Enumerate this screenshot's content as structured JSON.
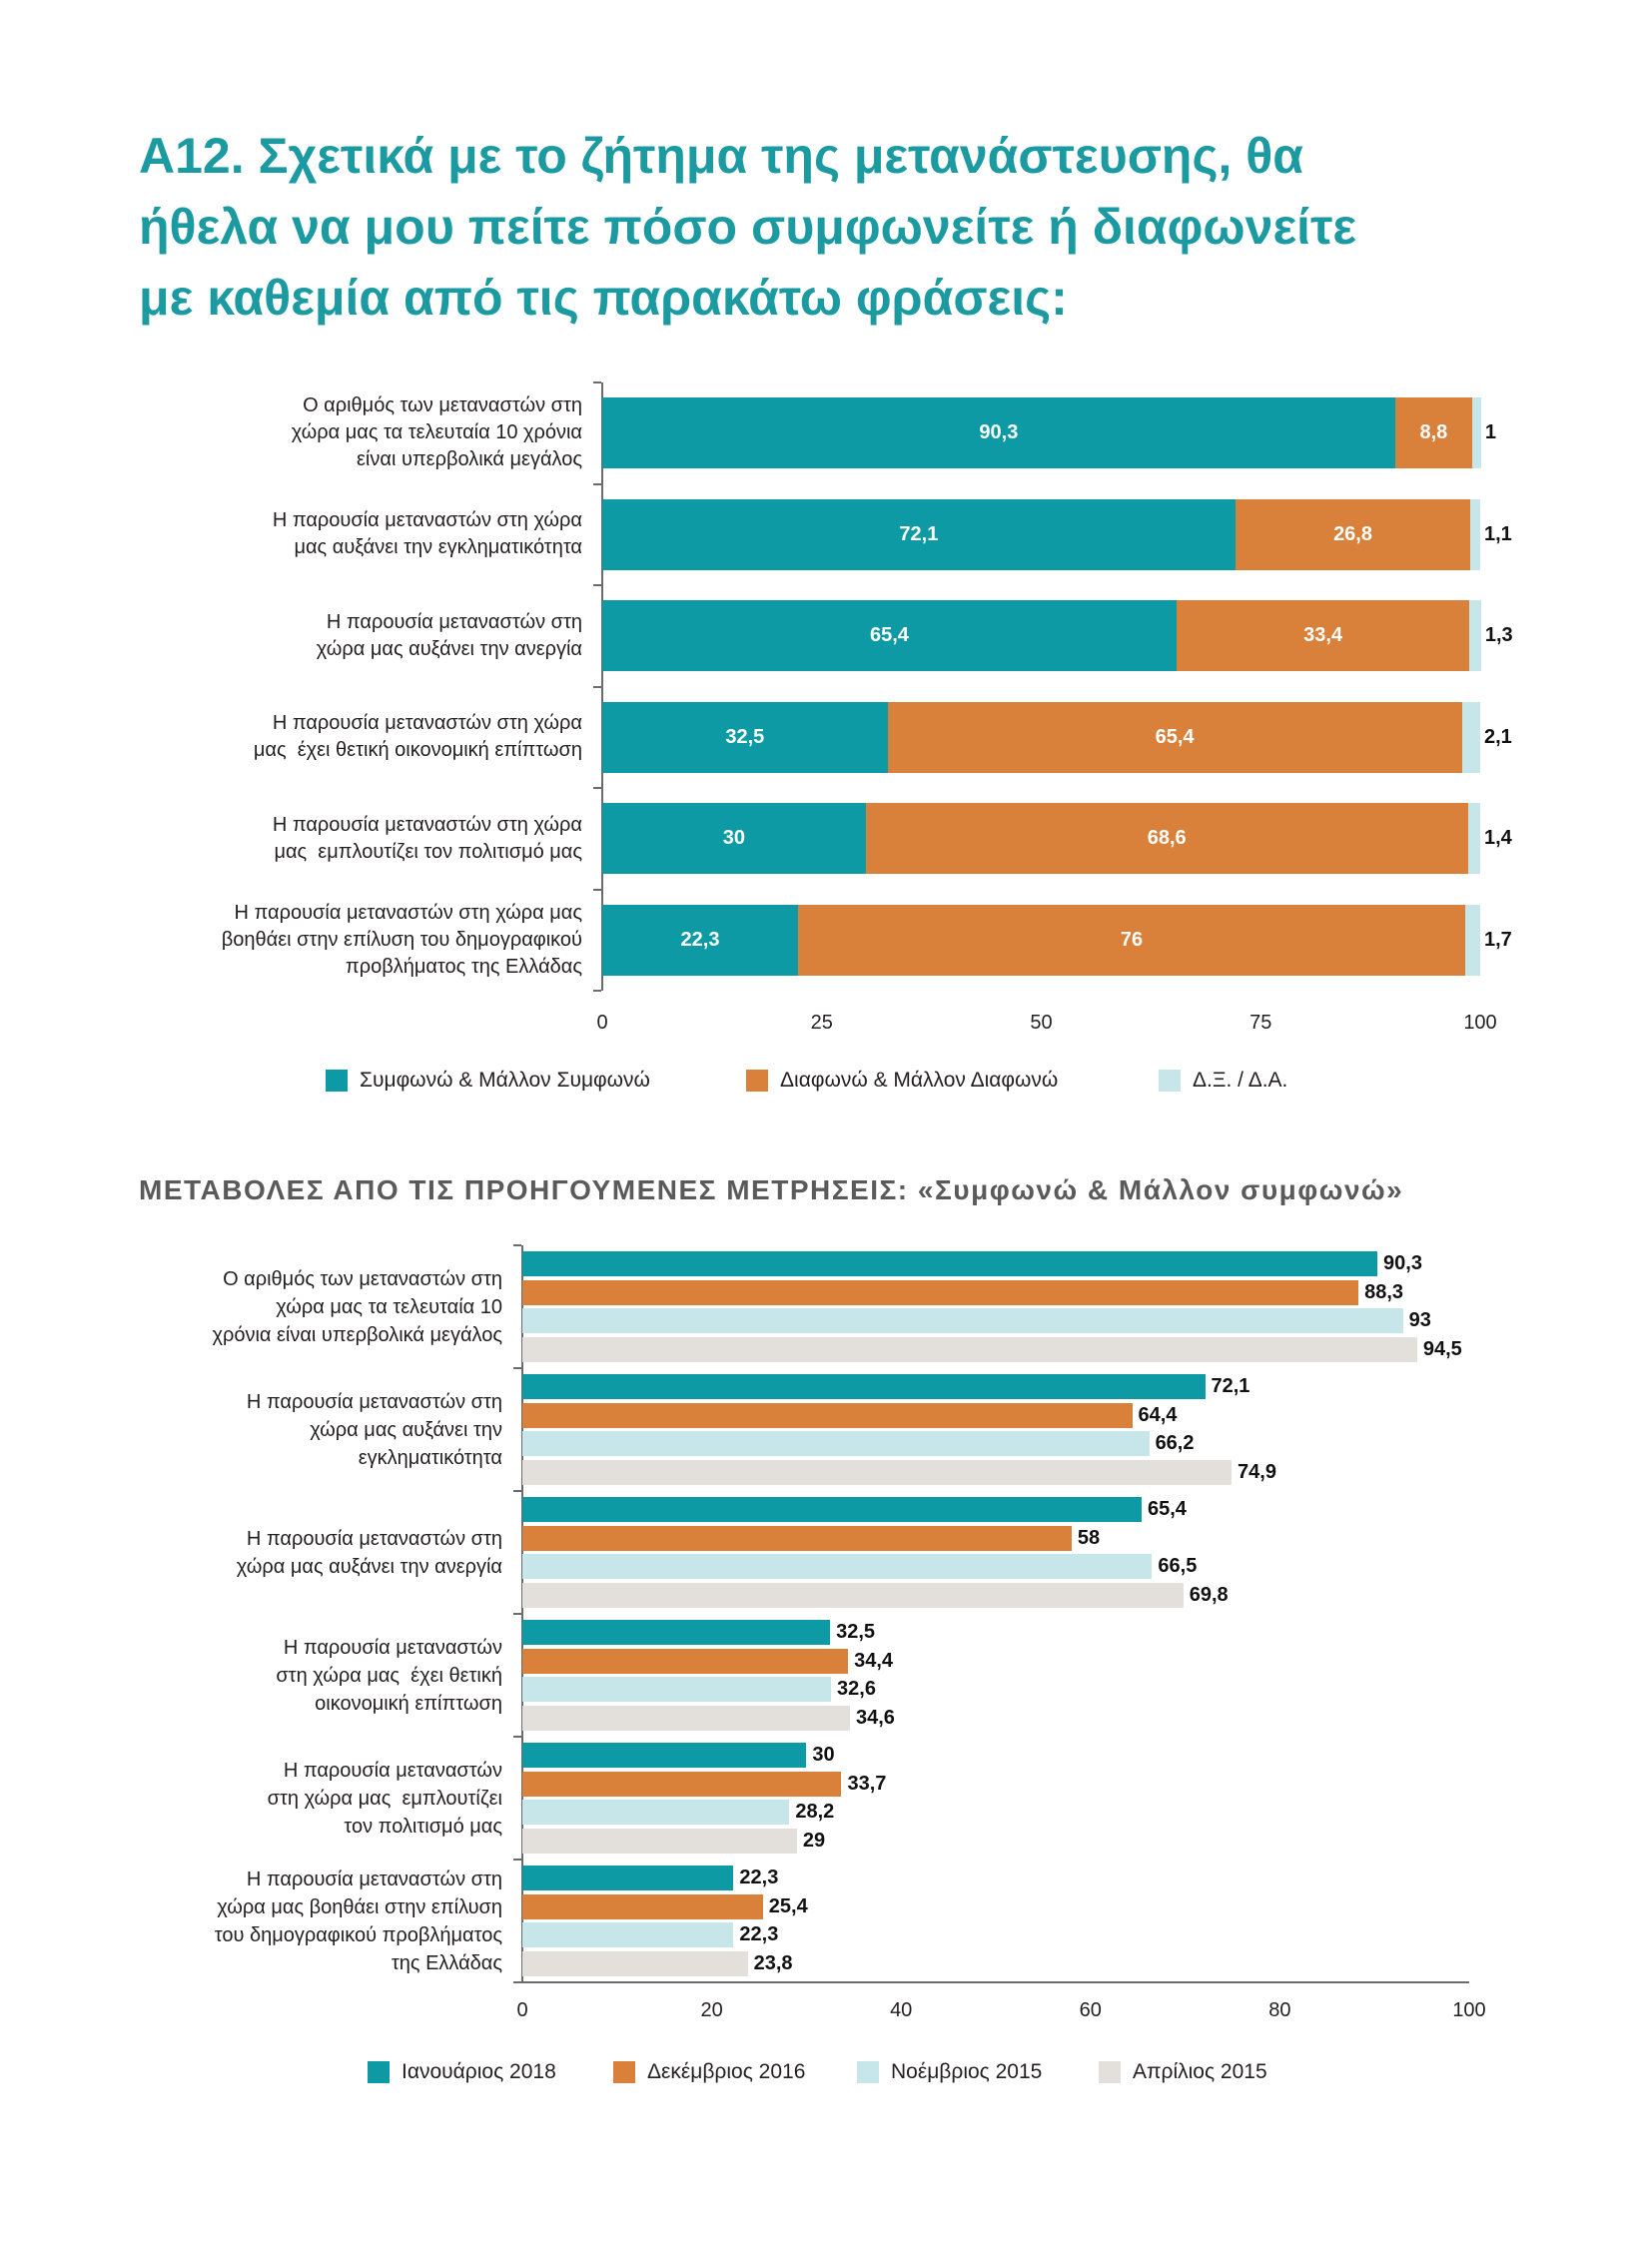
{
  "theme": {
    "title_color": "#1b9aa2",
    "heading_color": "#5a5a5a"
  },
  "chart_data": [
    {
      "type": "bar",
      "orientation": "horizontal",
      "stacked": true,
      "title_lines": [
        "Α12. Σχετικά με το ζήτημα της μετανάστευσης, θα",
        "ήθελα να μου πείτε πόσο συμφωνείτε ή διαφωνείτε",
        "με καθεμία από τις παρακάτω φράσεις:"
      ],
      "categories": [
        [
          "Ο αριθμός των μεταναστών στη",
          "χώρα μας τα τελευταία 10 χρόνια",
          "είναι υπερβολικά μεγάλος"
        ],
        [
          "Η παρουσία μεταναστών στη χώρα",
          "μας αυξάνει την εγκληματικότητα"
        ],
        [
          "Η παρουσία μεταναστών στη",
          "χώρα μας αυξάνει την ανεργία"
        ],
        [
          "Η παρουσία μεταναστών στη χώρα",
          "μας  έχει θετική οικονομική επίπτωση"
        ],
        [
          "Η παρουσία μεταναστών στη χώρα",
          "μας  εμπλουτίζει τον πολιτισμό μας"
        ],
        [
          "Η παρουσία μεταναστών στη χώρα μας",
          "βοηθάει στην επίλυση του δημογραφικού",
          "προβλήματος της Ελλάδας"
        ]
      ],
      "series": [
        {
          "name": "Συμφωνώ & Μάλλον Συμφωνώ",
          "values": [
            90.3,
            72.1,
            65.4,
            32.5,
            30,
            22.3
          ],
          "color": "#0e9aa5"
        },
        {
          "name": "Διαφωνώ & Μάλλον Διαφωνώ",
          "values": [
            8.8,
            26.8,
            33.4,
            65.4,
            68.6,
            76
          ],
          "color": "#d9813b"
        },
        {
          "name": "Δ.Ξ. / Δ.Α.",
          "values": [
            1,
            1.1,
            1.3,
            2.1,
            1.4,
            1.7
          ],
          "color": "#c6e6ea"
        }
      ],
      "xlim": [
        0,
        100
      ],
      "xticks": [
        0,
        25,
        50,
        75,
        100
      ],
      "grid": false,
      "legend": "bottom"
    },
    {
      "type": "bar",
      "orientation": "horizontal",
      "stacked": false,
      "title": "ΜΕΤΑΒΟΛΕΣ ΑΠΟ ΤΙΣ ΠΡΟΗΓΟΥΜΕΝΕΣ ΜΕΤΡΗΣΕΙΣ: «Συμφωνώ & Μάλλον συμφωνώ»",
      "categories": [
        [
          "Ο αριθμός των μεταναστών στη",
          "χώρα μας τα τελευταία 10",
          "χρόνια είναι υπερβολικά μεγάλος"
        ],
        [
          "Η παρουσία μεταναστών στη",
          "χώρα μας αυξάνει την",
          "εγκληματικότητα"
        ],
        [
          "Η παρουσία μεταναστών στη",
          "χώρα μας αυξάνει την ανεργία"
        ],
        [
          "Η παρουσία μεταναστών",
          "στη χώρα μας  έχει θετική",
          "οικονομική επίπτωση"
        ],
        [
          "Η παρουσία μεταναστών",
          "στη χώρα μας  εμπλουτίζει",
          "τον πολιτισμό μας"
        ],
        [
          "Η παρουσία μεταναστών στη",
          "χώρα μας βοηθάει στην επίλυση",
          "του δημογραφικού προβλήματος",
          "της Ελλάδας"
        ]
      ],
      "series": [
        {
          "name": "Ιανουάριος 2018",
          "values": [
            90.3,
            72.1,
            65.4,
            32.5,
            30,
            22.3
          ],
          "color": "#0e9aa5"
        },
        {
          "name": "Δεκέμβριος 2016",
          "values": [
            88.3,
            64.4,
            58,
            34.4,
            33.7,
            25.4
          ],
          "color": "#d9813b"
        },
        {
          "name": "Νοέμβριος 2015",
          "values": [
            93,
            66.2,
            66.5,
            32.6,
            28.2,
            22.3
          ],
          "color": "#c6e6ea"
        },
        {
          "name": "Απρίλιος 2015",
          "values": [
            94.5,
            74.9,
            69.8,
            34.6,
            29,
            23.8
          ],
          "color": "#e3dfdb"
        }
      ],
      "xlim": [
        0,
        100
      ],
      "xticks": [
        0,
        20,
        40,
        60,
        80,
        100
      ],
      "grid": false,
      "legend": "bottom"
    }
  ]
}
